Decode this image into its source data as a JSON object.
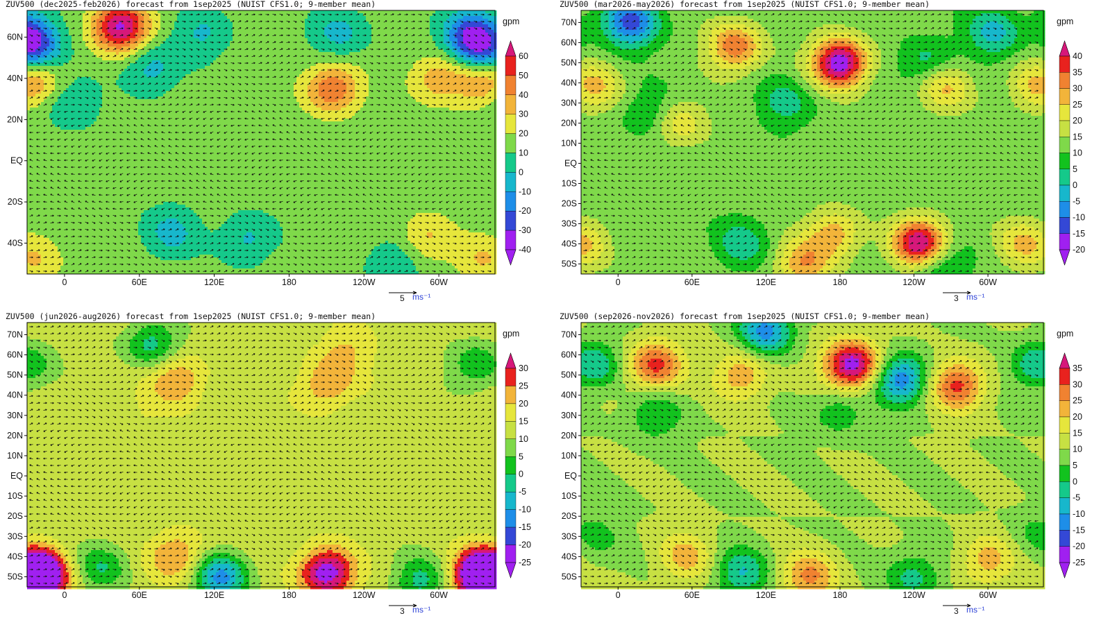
{
  "chart_data": [
    {
      "type": "heatmap",
      "title": "ZUV500 (dec2025-feb2026) forecast from 1sep2025 (NUIST CFS1.0; 9-member mean)",
      "xlabel": "",
      "ylabel": "",
      "x_ticks": [
        "0",
        "60E",
        "120E",
        "180",
        "120W",
        "60W"
      ],
      "y_ticks": [
        "60N",
        "40N",
        "20N",
        "EQ",
        "20S",
        "40S"
      ],
      "y_ticks_lat": [
        60,
        40,
        20,
        0,
        -20,
        -40
      ],
      "lat_range": [
        -55,
        73
      ],
      "lon_range": [
        -30,
        345
      ],
      "colorbar": {
        "unit": "gpm",
        "levels": [
          -40,
          -30,
          -20,
          -10,
          0,
          10,
          20,
          30,
          40,
          50,
          60
        ],
        "labels": [
          "-40",
          "-30",
          "-20",
          "-10",
          "0",
          "10",
          "20",
          "30",
          "40",
          "50",
          "60"
        ],
        "colors": [
          "#a020f0",
          "#3448d6",
          "#1e8ee8",
          "#17b7cc",
          "#15c98a",
          "#7fd94a",
          "#e6e63c",
          "#f2b43a",
          "#f08231",
          "#e8221e",
          "#d6187a",
          "#a020f0"
        ]
      },
      "vector_reference": {
        "value": "5",
        "unit": "ms⁻¹"
      },
      "anomalies": [
        {
          "lat": 65,
          "lon": 45,
          "value": 58
        },
        {
          "lat": 55,
          "lon": -25,
          "value": -35
        },
        {
          "lat": 62,
          "lon": 325,
          "value": -32
        },
        {
          "lat": 62,
          "lon": 220,
          "value": -18
        },
        {
          "lat": 62,
          "lon": 110,
          "value": -15
        },
        {
          "lat": 45,
          "lon": 70,
          "value": -18
        },
        {
          "lat": 35,
          "lon": 215,
          "value": 35
        },
        {
          "lat": 40,
          "lon": 300,
          "value": 22
        },
        {
          "lat": 38,
          "lon": -25,
          "value": 25
        },
        {
          "lat": 28,
          "lon": 5,
          "value": -15
        },
        {
          "lat": -35,
          "lon": 85,
          "value": -18
        },
        {
          "lat": -38,
          "lon": 147,
          "value": -16
        },
        {
          "lat": -50,
          "lon": 265,
          "value": -15
        },
        {
          "lat": -38,
          "lon": 290,
          "value": 18
        },
        {
          "lat": -48,
          "lon": 335,
          "value": 16
        }
      ],
      "background": 4
    },
    {
      "type": "heatmap",
      "title": "ZUV500 (mar2026-may2026) forecast from 1sep2025 (NUIST CFS1.0; 9-member mean)",
      "xlabel": "",
      "ylabel": "",
      "x_ticks": [
        "0",
        "60E",
        "120E",
        "180",
        "120W",
        "60W"
      ],
      "y_ticks": [
        "70N",
        "60N",
        "50N",
        "40N",
        "30N",
        "20N",
        "10N",
        "EQ",
        "10S",
        "20S",
        "30S",
        "40S",
        "50S"
      ],
      "y_ticks_lat": [
        70,
        60,
        50,
        40,
        30,
        20,
        10,
        0,
        -10,
        -20,
        -30,
        -40,
        -50
      ],
      "lat_range": [
        -55,
        76
      ],
      "lon_range": [
        -30,
        345
      ],
      "colorbar": {
        "unit": "gpm",
        "levels": [
          -20,
          -15,
          -10,
          -5,
          0,
          5,
          10,
          15,
          20,
          25,
          30,
          35,
          40
        ],
        "labels": [
          "-20",
          "-15",
          "-10",
          "-5",
          "0",
          "5",
          "10",
          "15",
          "20",
          "25",
          "30",
          "35",
          "40"
        ],
        "colors": [
          "#a020f0",
          "#3448d6",
          "#1e8ee8",
          "#17b7cc",
          "#15c98a",
          "#12c21e",
          "#7fd94a",
          "#c7e043",
          "#e6e63c",
          "#f2b43a",
          "#f08231",
          "#e8221e",
          "#d6187a",
          "#a020f0"
        ]
      },
      "vector_reference": {
        "value": "3",
        "unit": "ms⁻¹"
      },
      "anomalies": [
        {
          "lat": 70,
          "lon": 10,
          "value": -24
        },
        {
          "lat": 58,
          "lon": 95,
          "value": 22
        },
        {
          "lat": 50,
          "lon": 180,
          "value": 38
        },
        {
          "lat": 65,
          "lon": 305,
          "value": -14
        },
        {
          "lat": 50,
          "lon": 250,
          "value": -10
        },
        {
          "lat": 38,
          "lon": 265,
          "value": 14
        },
        {
          "lat": 30,
          "lon": 135,
          "value": -9
        },
        {
          "lat": 25,
          "lon": 25,
          "value": -8
        },
        {
          "lat": 20,
          "lon": 50,
          "value": 12
        },
        {
          "lat": 38,
          "lon": -20,
          "value": 14
        },
        {
          "lat": -40,
          "lon": 245,
          "value": 35
        },
        {
          "lat": -40,
          "lon": 100,
          "value": -10
        },
        {
          "lat": -35,
          "lon": 175,
          "value": 16
        },
        {
          "lat": -50,
          "lon": 260,
          "value": -12
        },
        {
          "lat": -50,
          "lon": 150,
          "value": 17
        },
        {
          "lat": -40,
          "lon": 330,
          "value": 14
        }
      ],
      "background": 7
    },
    {
      "type": "heatmap",
      "title": "ZUV500 (jun2026-aug2026) forecast from 1sep2025 (NUIST CFS1.0; 9-member mean)",
      "xlabel": "",
      "ylabel": "",
      "x_ticks": [
        "0",
        "60E",
        "120E",
        "180",
        "120W",
        "60W"
      ],
      "y_ticks": [
        "70N",
        "60N",
        "50N",
        "40N",
        "30N",
        "20N",
        "10N",
        "EQ",
        "10S",
        "20S",
        "30S",
        "40S",
        "50S"
      ],
      "y_ticks_lat": [
        70,
        60,
        50,
        40,
        30,
        20,
        10,
        0,
        -10,
        -20,
        -30,
        -40,
        -50
      ],
      "lat_range": [
        -55,
        76
      ],
      "lon_range": [
        -30,
        345
      ],
      "colorbar": {
        "unit": "gpm",
        "levels": [
          -25,
          -20,
          -15,
          -10,
          -5,
          0,
          5,
          10,
          15,
          20,
          25,
          30
        ],
        "labels": [
          "-25",
          "-20",
          "-15",
          "-10",
          "-5",
          "0",
          "5",
          "10",
          "15",
          "20",
          "25",
          "30"
        ],
        "colors": [
          "#a020f0",
          "#3448d6",
          "#1e8ee8",
          "#17b7cc",
          "#15c98a",
          "#12c21e",
          "#7fd94a",
          "#c7e043",
          "#e6e63c",
          "#f2b43a",
          "#e8221e",
          "#d6187a",
          "#a020f0"
        ]
      },
      "vector_reference": {
        "value": "3",
        "unit": "ms⁻¹"
      },
      "anomalies": [
        {
          "lat": 65,
          "lon": 70,
          "value": -15
        },
        {
          "lat": 55,
          "lon": 330,
          "value": -12
        },
        {
          "lat": 48,
          "lon": 90,
          "value": 13
        },
        {
          "lat": 45,
          "lon": 210,
          "value": 12
        },
        {
          "lat": 62,
          "lon": 225,
          "value": 8
        },
        {
          "lat": -50,
          "lon": -25,
          "value": 28
        },
        {
          "lat": -45,
          "lon": 30,
          "value": -12
        },
        {
          "lat": -50,
          "lon": 125,
          "value": -24
        },
        {
          "lat": -48,
          "lon": 210,
          "value": 27
        },
        {
          "lat": -48,
          "lon": 340,
          "value": 25
        },
        {
          "lat": -52,
          "lon": 285,
          "value": -14
        },
        {
          "lat": -40,
          "lon": 90,
          "value": 14
        },
        {
          "lat": 30,
          "lon": 60,
          "value": 3
        }
      ],
      "background": 7.5
    },
    {
      "type": "heatmap",
      "title": "ZUV500 (sep2026-nov2026) forecast from 1sep2025 (NUIST CFS1.0; 9-member mean)",
      "xlabel": "",
      "ylabel": "",
      "x_ticks": [
        "0",
        "60E",
        "120E",
        "180",
        "120W",
        "60W"
      ],
      "y_ticks": [
        "70N",
        "60N",
        "50N",
        "40N",
        "30N",
        "20N",
        "10N",
        "EQ",
        "10S",
        "20S",
        "30S",
        "40S",
        "50S"
      ],
      "y_ticks_lat": [
        70,
        60,
        50,
        40,
        30,
        20,
        10,
        0,
        -10,
        -20,
        -30,
        -40,
        -50
      ],
      "lat_range": [
        -55,
        76
      ],
      "lon_range": [
        -30,
        345
      ],
      "colorbar": {
        "unit": "gpm",
        "levels": [
          -25,
          -20,
          -15,
          -10,
          -5,
          0,
          5,
          10,
          15,
          20,
          25,
          30,
          35
        ],
        "labels": [
          "-25",
          "-20",
          "-15",
          "-10",
          "-5",
          "0",
          "5",
          "10",
          "15",
          "20",
          "25",
          "30",
          "35"
        ],
        "colors": [
          "#a020f0",
          "#3448d6",
          "#1e8ee8",
          "#17b7cc",
          "#15c98a",
          "#12c21e",
          "#7fd94a",
          "#c7e043",
          "#e6e63c",
          "#f2b43a",
          "#f08231",
          "#e8221e",
          "#d6187a",
          "#a020f0"
        ]
      },
      "vector_reference": {
        "value": "3",
        "unit": "ms⁻¹"
      },
      "anomalies": [
        {
          "lat": 72,
          "lon": 120,
          "value": -22
        },
        {
          "lat": 55,
          "lon": 30,
          "value": 22
        },
        {
          "lat": 55,
          "lon": 190,
          "value": 34
        },
        {
          "lat": 48,
          "lon": 230,
          "value": -24
        },
        {
          "lat": 45,
          "lon": 275,
          "value": 22
        },
        {
          "lat": 55,
          "lon": 340,
          "value": -15
        },
        {
          "lat": 30,
          "lon": 30,
          "value": -10
        },
        {
          "lat": 32,
          "lon": 180,
          "value": -9
        },
        {
          "lat": 50,
          "lon": 100,
          "value": 14
        },
        {
          "lat": -48,
          "lon": 100,
          "value": -15
        },
        {
          "lat": -50,
          "lon": 155,
          "value": 16
        },
        {
          "lat": -40,
          "lon": 55,
          "value": 12
        },
        {
          "lat": -50,
          "lon": 240,
          "value": -12
        },
        {
          "lat": -42,
          "lon": 300,
          "value": 13
        },
        {
          "lat": -30,
          "lon": 340,
          "value": -7
        }
      ],
      "background": 5
    }
  ]
}
